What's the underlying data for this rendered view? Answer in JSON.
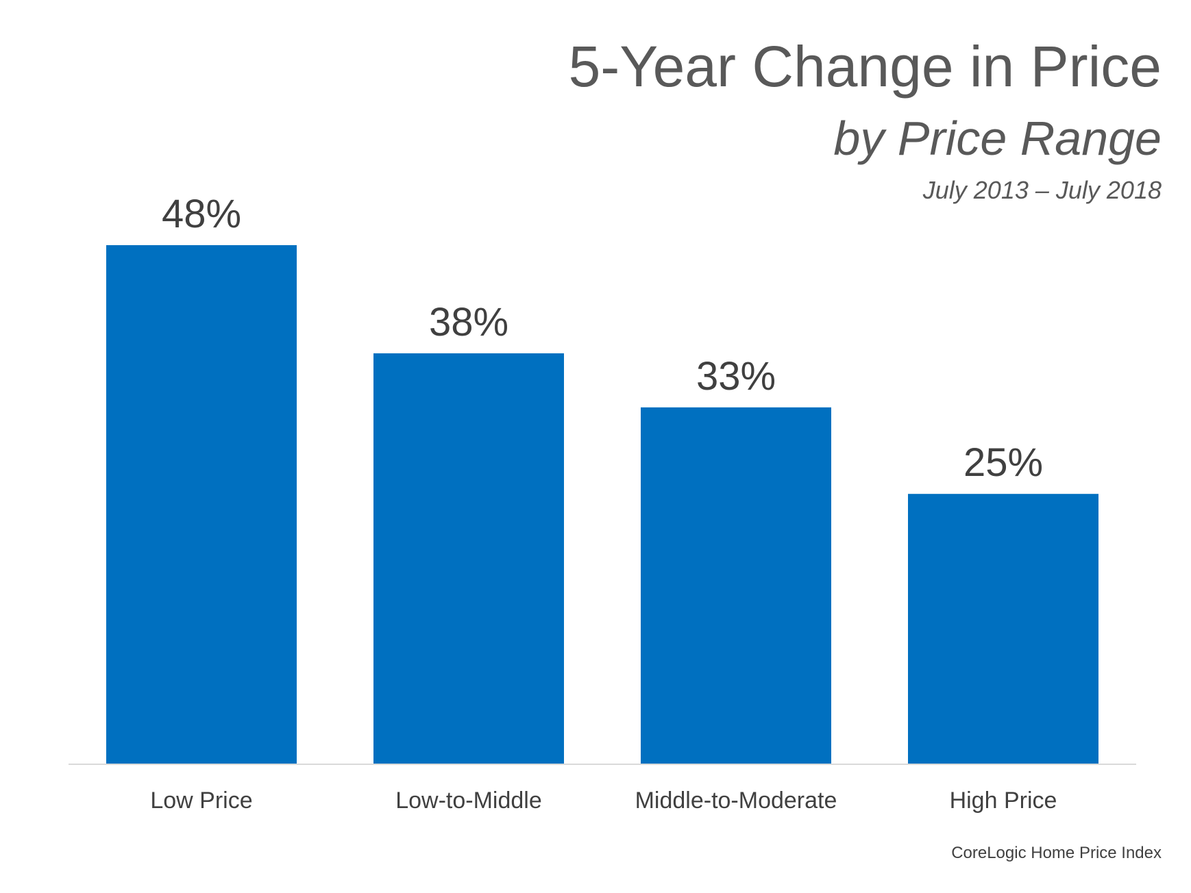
{
  "chart_data": {
    "type": "bar",
    "title": "5-Year Change in Price",
    "subtitle": "by Price Range",
    "period": "July 2013 – July 2018",
    "source": "CoreLogic Home Price Index",
    "categories": [
      "Low Price",
      "Low-to-Middle",
      "Middle-to-Moderate",
      "High Price"
    ],
    "values": [
      48,
      38,
      33,
      25
    ],
    "value_labels": [
      "48%",
      "38%",
      "33%",
      "25%"
    ],
    "xlabel": "",
    "ylabel": "",
    "ylim": [
      0,
      48
    ],
    "grid": false,
    "bar_color": "#0070C0",
    "axis_color": "#D9D9D9",
    "text_color": "#595959"
  }
}
